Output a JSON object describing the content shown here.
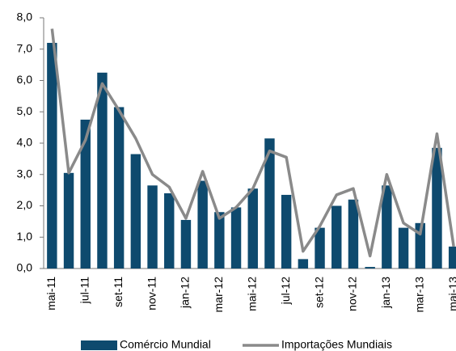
{
  "chart_data": {
    "type": "bar_line",
    "categories": [
      "mai-11",
      null,
      "jul-11",
      null,
      "set-11",
      null,
      "nov-11",
      null,
      "jan-12",
      null,
      "mar-12",
      null,
      "mai-12",
      null,
      "jul-12",
      null,
      "set-12",
      null,
      "nov-12",
      null,
      "jan-13",
      null,
      "mar-13",
      null,
      "mai-13"
    ],
    "series": [
      {
        "name": "Comércio Mundial",
        "color": "#0e4a6e",
        "kind": "bar",
        "values": [
          7.2,
          3.05,
          4.75,
          6.25,
          5.15,
          3.65,
          2.65,
          2.4,
          1.55,
          2.8,
          1.8,
          1.95,
          2.55,
          4.15,
          2.35,
          0.3,
          1.3,
          2.0,
          2.2,
          0.05,
          2.65,
          1.3,
          1.45,
          3.85,
          0.7
        ]
      },
      {
        "name": "Importações Mundiais",
        "color": "#8a8a8a",
        "kind": "line",
        "values": [
          7.65,
          3.05,
          4.1,
          5.9,
          5.05,
          4.15,
          3.0,
          2.6,
          1.6,
          3.1,
          1.6,
          1.95,
          2.55,
          3.75,
          3.55,
          0.55,
          1.35,
          2.35,
          2.55,
          0.4,
          3.0,
          1.45,
          1.1,
          4.3,
          0.7
        ]
      }
    ],
    "ylim": [
      0,
      8
    ],
    "yticks": [
      {
        "value": 0,
        "label": "0,0"
      },
      {
        "value": 1,
        "label": "1,0"
      },
      {
        "value": 2,
        "label": "2,0"
      },
      {
        "value": 3,
        "label": "3,0"
      },
      {
        "value": 4,
        "label": "4,0"
      },
      {
        "value": 5,
        "label": "5,0"
      },
      {
        "value": 6,
        "label": "6,0"
      },
      {
        "value": 7,
        "label": "7,0"
      },
      {
        "value": 8,
        "label": "8,0"
      }
    ],
    "grid": false
  }
}
